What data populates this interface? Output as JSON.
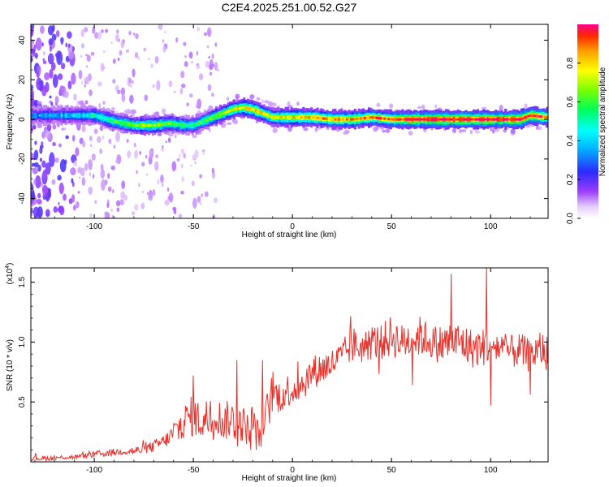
{
  "title": "C2E4.2025.251.00.52.G27",
  "chart_data": [
    {
      "type": "heatmap",
      "name": "spectrogram",
      "xlabel": "Height of straight line (km)",
      "ylabel": "Frequency (Hz)",
      "xlim": [
        -132,
        129
      ],
      "ylim": [
        -50,
        48
      ],
      "xticks": [
        -100,
        -50,
        0,
        50,
        100
      ],
      "yticks": [
        -40,
        -20,
        0,
        20,
        40
      ],
      "colorbar": {
        "label": "Normalized spectral amplitude",
        "range": [
          0,
          1
        ],
        "ticks": [
          0.0,
          0.2,
          0.4,
          0.6,
          0.8
        ],
        "tick_labels": [
          "0.0",
          "0.2",
          "0.4",
          "0.6",
          "0.8"
        ]
      },
      "ridge_center_hz": {
        "x": [
          -132,
          -110,
          -100,
          -90,
          -80,
          -70,
          -62,
          -55,
          -50,
          -45,
          -40,
          -35,
          -30,
          -25,
          -20,
          -15,
          -10,
          0,
          10,
          20,
          30,
          40,
          50,
          60,
          80,
          100,
          115,
          120,
          129
        ],
        "y": [
          2,
          2,
          2,
          -1,
          -3,
          -3,
          -2,
          -3,
          -3,
          -1,
          1,
          3,
          5,
          6,
          5,
          3,
          1,
          1,
          1,
          0,
          0,
          1,
          0,
          0,
          0,
          0,
          0,
          2,
          1
        ]
      },
      "ridge_peak_amplitude": {
        "x": [
          -132,
          -110,
          -95,
          -75,
          -50,
          -30,
          -20,
          -10,
          0,
          15,
          30,
          50,
          60,
          80,
          100,
          120,
          129
        ],
        "y": [
          0.35,
          0.4,
          0.55,
          0.7,
          0.55,
          0.75,
          0.8,
          0.75,
          0.8,
          0.85,
          0.85,
          0.9,
          1.0,
          1.0,
          1.0,
          1.0,
          0.9
        ]
      }
    },
    {
      "type": "line",
      "name": "snr",
      "xlabel": "Height of straight line (km)",
      "ylabel": "SNR (10 * v/v)",
      "multiplier_label": "(x10",
      "multiplier_exp": "4",
      "xlim": [
        -132,
        129
      ],
      "ylim": [
        0,
        1.62
      ],
      "xticks": [
        -100,
        -50,
        0,
        50,
        100
      ],
      "yticks": [
        0.5,
        1.0,
        1.5
      ],
      "ytick_labels": [
        "0.5",
        "1.0",
        "1.5"
      ],
      "color": "#e8312b",
      "series": [
        {
          "name": "SNR",
          "x": [
            -132,
            -125,
            -120,
            -115,
            -110,
            -105,
            -100,
            -95,
            -90,
            -85,
            -80,
            -75,
            -70,
            -65,
            -62,
            -60,
            -58,
            -55,
            -52,
            -50,
            -48,
            -45,
            -42,
            -40,
            -38,
            -35,
            -32,
            -30,
            -28,
            -25,
            -22,
            -20,
            -18,
            -16,
            -14,
            -12,
            -10,
            -8,
            -5,
            -3,
            0,
            5,
            10,
            15,
            20,
            25,
            30,
            35,
            40,
            45,
            50,
            55,
            60,
            65,
            70,
            75,
            80,
            85,
            90,
            95,
            100,
            105,
            110,
            115,
            120,
            125,
            129
          ],
          "mean": [
            0.03,
            0.03,
            0.03,
            0.04,
            0.04,
            0.05,
            0.06,
            0.07,
            0.08,
            0.09,
            0.09,
            0.1,
            0.13,
            0.17,
            0.2,
            0.25,
            0.27,
            0.33,
            0.38,
            0.38,
            0.36,
            0.33,
            0.4,
            0.36,
            0.4,
            0.32,
            0.36,
            0.35,
            0.3,
            0.32,
            0.26,
            0.35,
            0.22,
            0.24,
            0.35,
            0.45,
            0.58,
            0.55,
            0.55,
            0.6,
            0.6,
            0.65,
            0.75,
            0.78,
            0.82,
            0.88,
            0.98,
            0.95,
            1.0,
            1.0,
            1.05,
            1.0,
            1.03,
            1.05,
            1.0,
            0.98,
            1.0,
            1.0,
            0.95,
            0.95,
            0.98,
            0.95,
            0.92,
            0.93,
            0.88,
            0.95,
            0.9
          ],
          "spread": [
            0.02,
            0.02,
            0.02,
            0.02,
            0.02,
            0.02,
            0.03,
            0.03,
            0.03,
            0.03,
            0.04,
            0.04,
            0.05,
            0.06,
            0.07,
            0.1,
            0.14,
            0.14,
            0.16,
            0.18,
            0.16,
            0.16,
            0.18,
            0.17,
            0.16,
            0.15,
            0.17,
            0.16,
            0.16,
            0.15,
            0.14,
            0.16,
            0.14,
            0.14,
            0.16,
            0.18,
            0.18,
            0.15,
            0.13,
            0.14,
            0.14,
            0.14,
            0.14,
            0.14,
            0.13,
            0.13,
            0.16,
            0.13,
            0.15,
            0.15,
            0.18,
            0.15,
            0.18,
            0.17,
            0.14,
            0.17,
            0.18,
            0.17,
            0.17,
            0.16,
            0.17,
            0.15,
            0.14,
            0.15,
            0.14,
            0.15,
            0.15
          ],
          "notable_points": [
            {
              "x": -50,
              "y": 0.72
            },
            {
              "x": -28,
              "y": 0.85
            },
            {
              "x": -15,
              "y": 0.85
            },
            {
              "x": 80,
              "y": 1.57
            },
            {
              "x": 98,
              "y": 1.62
            },
            {
              "x": 100,
              "y": 0.47
            }
          ]
        }
      ]
    }
  ]
}
